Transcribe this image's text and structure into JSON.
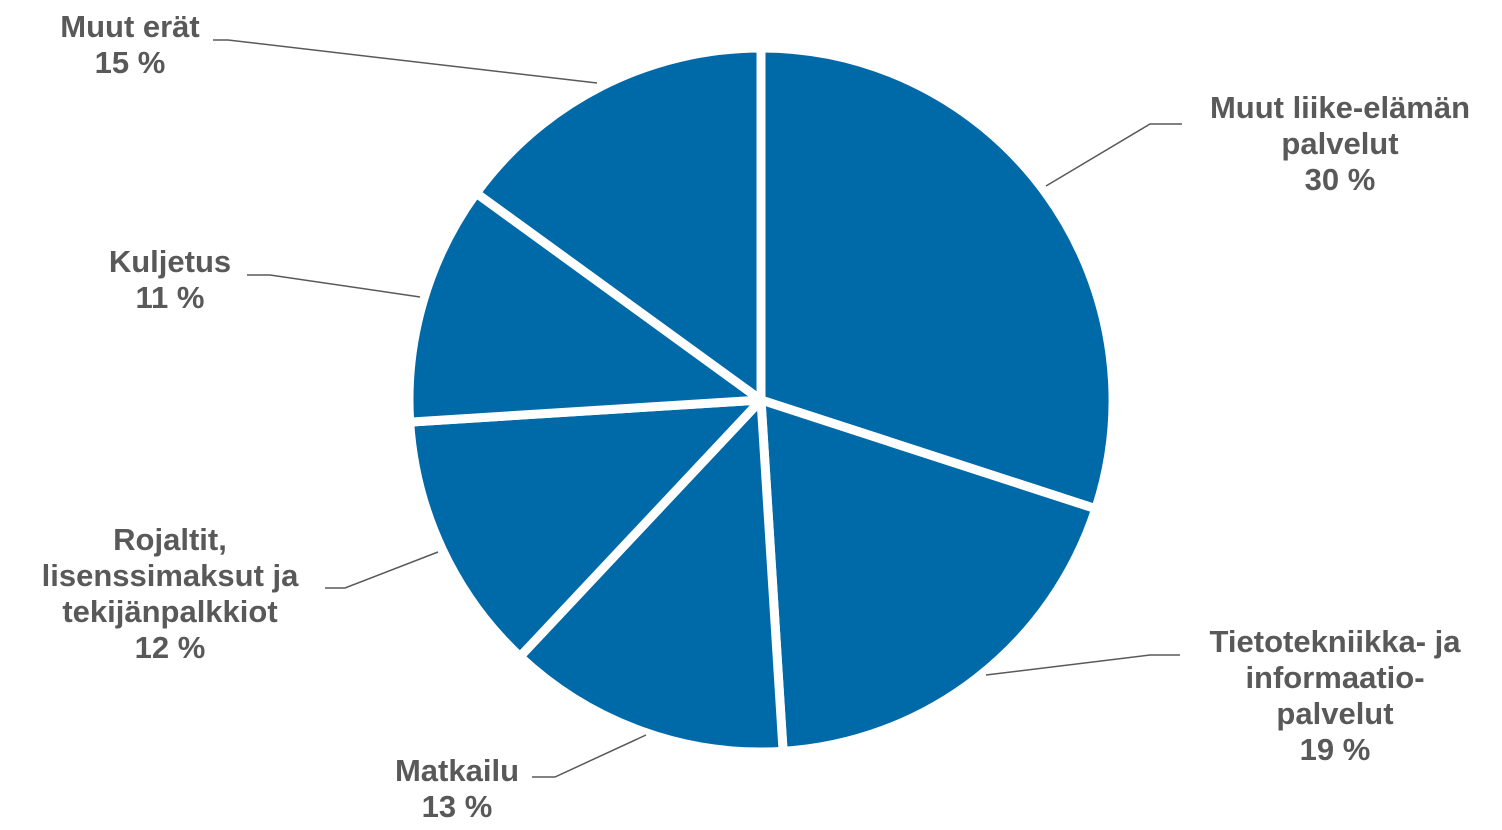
{
  "chart_data": {
    "type": "pie",
    "title": "",
    "unit": "%",
    "slices": [
      {
        "label_lines": [
          "Muut liike-elämän",
          "palvelut"
        ],
        "value": 30,
        "value_text": "30 %"
      },
      {
        "label_lines": [
          "Tietotekniikka- ja",
          "informaatio-",
          "palvelut"
        ],
        "value": 19,
        "value_text": "19 %"
      },
      {
        "label_lines": [
          "Matkailu"
        ],
        "value": 13,
        "value_text": "13 %"
      },
      {
        "label_lines": [
          "Rojaltit,",
          "lisenssimaksut ja",
          "tekijänpalkkiot"
        ],
        "value": 12,
        "value_text": "12 %"
      },
      {
        "label_lines": [
          "Kuljetus"
        ],
        "value": 11,
        "value_text": "11 %"
      },
      {
        "label_lines": [
          "Muut erät"
        ],
        "value": 15,
        "value_text": "15 %"
      }
    ],
    "start_angle": "12 o'clock",
    "direction": "clockwise",
    "legend": "none",
    "colors": {
      "slice": "#0069a8",
      "separator": "#ffffff",
      "label": "#595959",
      "leader": "#595959"
    }
  }
}
